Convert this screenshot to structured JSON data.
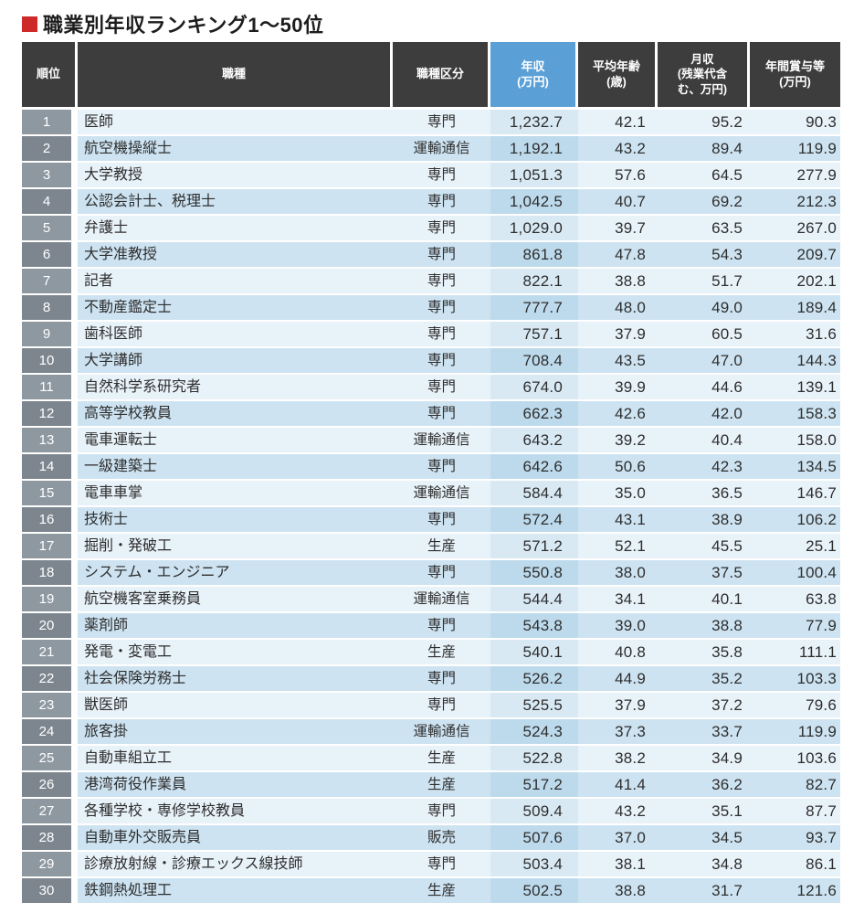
{
  "colors": {
    "title-red": "#ce2a2a",
    "header-dark": "#3d3d3d",
    "header-blue": "#5aa0d7",
    "row-odd": "#e8f2f9",
    "row-even": "#cde3f1",
    "income-odd": "#d8e9f4",
    "income-even": "#bddaec",
    "rank-odd": "#8e98a0",
    "rank-even": "#7d868f",
    "text": "#2e2e2e"
  },
  "chart_data": {
    "type": "table",
    "title": "職業別年収ランキング1〜50位",
    "columns": [
      "順位",
      "職種",
      "職種区分",
      "年収\n(万円)",
      "平均年齢\n(歳)",
      "月収\n(残業代含\nむ、万円)",
      "年間賞与等\n(万円)"
    ],
    "rows": [
      [
        "1",
        "医師",
        "専門",
        "1,232.7",
        "42.1",
        "95.2",
        "90.3"
      ],
      [
        "2",
        "航空機操縦士",
        "運輸通信",
        "1,192.1",
        "43.2",
        "89.4",
        "119.9"
      ],
      [
        "3",
        "大学教授",
        "専門",
        "1,051.3",
        "57.6",
        "64.5",
        "277.9"
      ],
      [
        "4",
        "公認会計士、税理士",
        "専門",
        "1,042.5",
        "40.7",
        "69.2",
        "212.3"
      ],
      [
        "5",
        "弁護士",
        "専門",
        "1,029.0",
        "39.7",
        "63.5",
        "267.0"
      ],
      [
        "6",
        "大学准教授",
        "専門",
        "861.8",
        "47.8",
        "54.3",
        "209.7"
      ],
      [
        "7",
        "記者",
        "専門",
        "822.1",
        "38.8",
        "51.7",
        "202.1"
      ],
      [
        "8",
        "不動産鑑定士",
        "専門",
        "777.7",
        "48.0",
        "49.0",
        "189.4"
      ],
      [
        "9",
        "歯科医師",
        "専門",
        "757.1",
        "37.9",
        "60.5",
        "31.6"
      ],
      [
        "10",
        "大学講師",
        "専門",
        "708.4",
        "43.5",
        "47.0",
        "144.3"
      ],
      [
        "11",
        "自然科学系研究者",
        "専門",
        "674.0",
        "39.9",
        "44.6",
        "139.1"
      ],
      [
        "12",
        "高等学校教員",
        "専門",
        "662.3",
        "42.6",
        "42.0",
        "158.3"
      ],
      [
        "13",
        "電車運転士",
        "運輸通信",
        "643.2",
        "39.2",
        "40.4",
        "158.0"
      ],
      [
        "14",
        "一級建築士",
        "専門",
        "642.6",
        "50.6",
        "42.3",
        "134.5"
      ],
      [
        "15",
        "電車車掌",
        "運輸通信",
        "584.4",
        "35.0",
        "36.5",
        "146.7"
      ],
      [
        "16",
        "技術士",
        "専門",
        "572.4",
        "43.1",
        "38.9",
        "106.2"
      ],
      [
        "17",
        "掘削・発破工",
        "生産",
        "571.2",
        "52.1",
        "45.5",
        "25.1"
      ],
      [
        "18",
        "システム・エンジニア",
        "専門",
        "550.8",
        "38.0",
        "37.5",
        "100.4"
      ],
      [
        "19",
        "航空機客室乗務員",
        "運輸通信",
        "544.4",
        "34.1",
        "40.1",
        "63.8"
      ],
      [
        "20",
        "薬剤師",
        "専門",
        "543.8",
        "39.0",
        "38.8",
        "77.9"
      ],
      [
        "21",
        "発電・変電工",
        "生産",
        "540.1",
        "40.8",
        "35.8",
        "111.1"
      ],
      [
        "22",
        "社会保険労務士",
        "専門",
        "526.2",
        "44.9",
        "35.2",
        "103.3"
      ],
      [
        "23",
        "獣医師",
        "専門",
        "525.5",
        "37.9",
        "37.2",
        "79.6"
      ],
      [
        "24",
        "旅客掛",
        "運輸通信",
        "524.3",
        "37.3",
        "33.7",
        "119.9"
      ],
      [
        "25",
        "自動車組立工",
        "生産",
        "522.8",
        "38.2",
        "34.9",
        "103.6"
      ],
      [
        "26",
        "港湾荷役作業員",
        "生産",
        "517.2",
        "41.4",
        "36.2",
        "82.7"
      ],
      [
        "27",
        "各種学校・専修学校教員",
        "専門",
        "509.4",
        "43.2",
        "35.1",
        "87.7"
      ],
      [
        "28",
        "自動車外交販売員",
        "販売",
        "507.6",
        "37.0",
        "34.5",
        "93.7"
      ],
      [
        "29",
        "診療放射線・診療エックス線技師",
        "専門",
        "503.4",
        "38.1",
        "34.8",
        "86.1"
      ],
      [
        "30",
        "鉄鋼熱処理工",
        "生産",
        "502.5",
        "38.8",
        "31.7",
        "121.6"
      ]
    ]
  }
}
